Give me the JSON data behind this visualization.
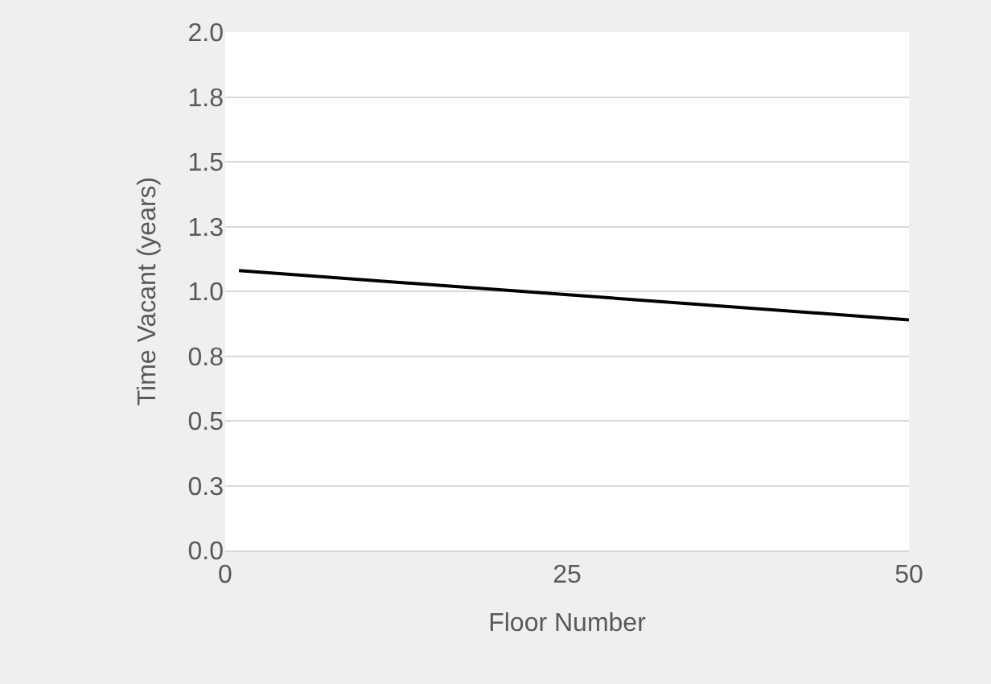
{
  "chart_data": {
    "type": "line",
    "xlabel": "Floor Number",
    "ylabel": "Time Vacant (years)",
    "x": [
      1,
      50
    ],
    "series": [
      {
        "color": "#000000",
        "values": [
          1.08,
          0.89
        ]
      }
    ],
    "xlim": [
      0,
      50
    ],
    "xticks": [
      0,
      25,
      50
    ],
    "ylim": [
      0,
      2
    ],
    "yticks": [
      {
        "value": 0,
        "label": "0.0"
      },
      {
        "value": 0.25,
        "label": "0.3"
      },
      {
        "value": 0.5,
        "label": "0.5"
      },
      {
        "value": 0.75,
        "label": "0.8"
      },
      {
        "value": 1,
        "label": "1.0"
      },
      {
        "value": 1.25,
        "label": "1.3"
      },
      {
        "value": 1.5,
        "label": "1.5"
      },
      {
        "value": 1.75,
        "label": "1.8"
      },
      {
        "value": 2,
        "label": "2.0"
      }
    ],
    "grid": "y",
    "marker": "none",
    "line_style": "solid"
  }
}
